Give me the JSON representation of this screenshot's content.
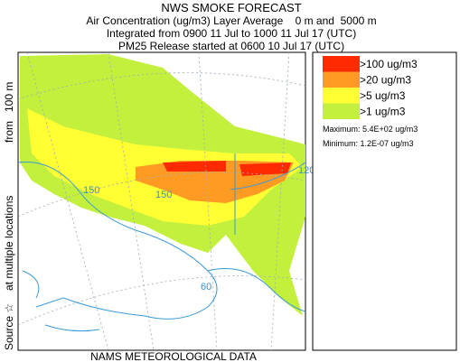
{
  "header": {
    "title": "NWS SMOKE FORECAST",
    "lines": [
      "Air Concentration (ug/m3) Layer Average    0 m and  5000 m",
      "Integrated from 0900 11 Jul to 1000 11 Jul 17 (UTC)",
      "PM25 Release started at 0600 10 Jul 17 (UTC)"
    ]
  },
  "legend": {
    "items": [
      {
        "label": ">100 ug/m3",
        "color": "#ff2a00"
      },
      {
        "label": ">20 ug/m3",
        "color": "#ff9a22"
      },
      {
        "label": ">5 ug/m3",
        "color": "#ffff33"
      },
      {
        "label": ">1 ug/m3",
        "color": "#c3f03c"
      }
    ],
    "maximum": "Maximum: 5.4E+02 ug/m3",
    "minimum": "Minimum: 1.2E-07 ug/m3"
  },
  "side_label": [
    "Source ☆",
    "at multiple locations",
    "from   100 m"
  ],
  "map_labels": [
    "150",
    "150",
    "120",
    "60"
  ],
  "footer": "NAMS METEOROLOGICAL DATA"
}
